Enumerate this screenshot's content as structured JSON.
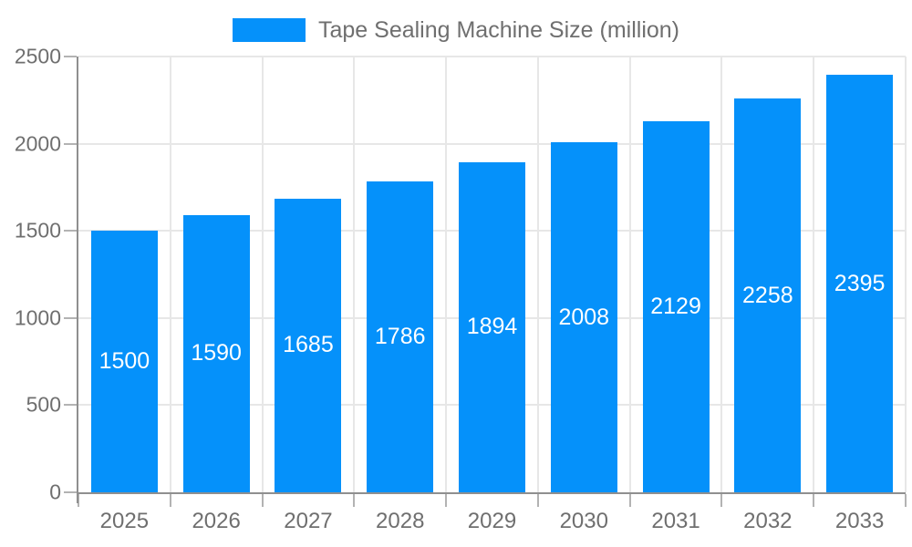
{
  "legend": {
    "label": "Tape Sealing Machine Size (million)",
    "swatch_color": "#0591FA"
  },
  "chart_data": {
    "type": "bar",
    "title": "Tape Sealing Machine Size (million)",
    "categories": [
      "2025",
      "2026",
      "2027",
      "2028",
      "2029",
      "2030",
      "2031",
      "2032",
      "2033"
    ],
    "values": [
      1500,
      1590,
      1685,
      1786,
      1894,
      2008,
      2129,
      2258,
      2395
    ],
    "xlabel": "",
    "ylabel": "",
    "ylim": [
      0,
      2500
    ],
    "yticks": [
      0,
      500,
      1000,
      1500,
      2000,
      2500
    ],
    "grid": true,
    "legend_position": "top",
    "bar_color": "#0591FA",
    "value_label_color": "#ffffff",
    "axis_text_color": "#6f6f6f",
    "grid_color": "#e7e7e7"
  }
}
